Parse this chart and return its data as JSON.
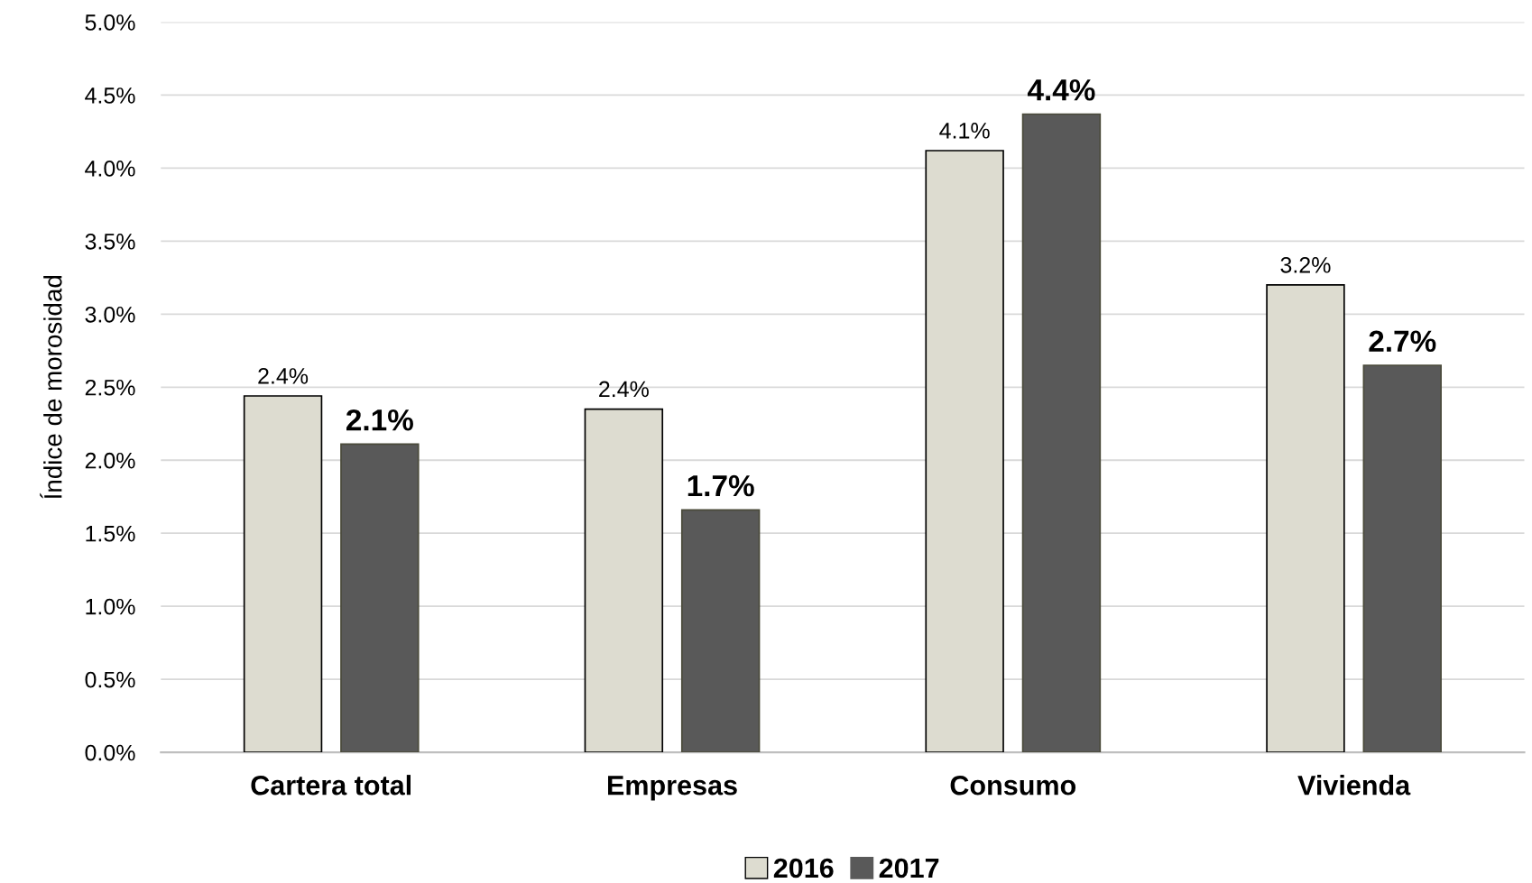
{
  "chart_data": {
    "type": "bar",
    "ylabel": "Índice de morosidad",
    "categories": [
      "Cartera total",
      "Empresas",
      "Consumo",
      "Vivienda"
    ],
    "series": [
      {
        "name": "2016",
        "color": "#dddcd0",
        "values": [
          2.44,
          2.35,
          4.12,
          3.2
        ],
        "value_labels": [
          "2.4%",
          "2.4%",
          "4.1%",
          "3.2%"
        ]
      },
      {
        "name": "2017",
        "color": "#595959",
        "values": [
          2.11,
          1.66,
          4.37,
          2.65
        ],
        "value_labels": [
          "2.1%",
          "1.7%",
          "4.4%",
          "2.7%"
        ]
      }
    ],
    "ylim": [
      0,
      5
    ],
    "yticks": [
      {
        "value": 0,
        "label": "0.0%"
      },
      {
        "value": 0.5,
        "label": "0.5%"
      },
      {
        "value": 1,
        "label": "1.0%"
      },
      {
        "value": 1.5,
        "label": "1.5%"
      },
      {
        "value": 2,
        "label": "2.0%"
      },
      {
        "value": 2.5,
        "label": "2.5%"
      },
      {
        "value": 3,
        "label": "3.0%"
      },
      {
        "value": 3.5,
        "label": "3.5%"
      },
      {
        "value": 4,
        "label": "4.0%"
      },
      {
        "value": 4.5,
        "label": "4.5%"
      },
      {
        "value": 5,
        "label": "5.0%"
      }
    ],
    "grid": "y",
    "legend": "bottom"
  }
}
